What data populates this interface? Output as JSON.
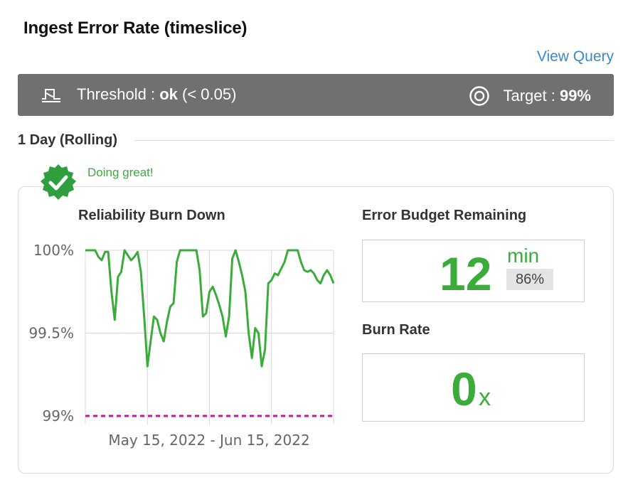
{
  "header": {
    "title": "Ingest Error Rate (timeslice)",
    "view_query": "View Query"
  },
  "status_bar": {
    "threshold_label": "Threshold :",
    "threshold_value": "ok",
    "threshold_detail": "(< 0.05)",
    "target_label": "Target :",
    "target_value": "99%",
    "icons": [
      "threshold-icon",
      "target-icon"
    ],
    "background": "#707070"
  },
  "period": {
    "label": "1 Day (Rolling)"
  },
  "status": {
    "text": "Doing great!",
    "color": "#3aac3a",
    "icon": "check-badge-icon"
  },
  "burn_down": {
    "title": "Reliability Burn Down"
  },
  "error_budget": {
    "title": "Error Budget Remaining",
    "value": "12",
    "unit": "min",
    "percent": "86%"
  },
  "burn_rate": {
    "title": "Burn Rate",
    "value": "0",
    "suffix": "x"
  },
  "chart_data": {
    "type": "line",
    "title": "",
    "xlabel": "May 15, 2022 - Jun 15, 2022",
    "ylabel": "",
    "y_ticks": [
      "100%",
      "99.5%",
      "99%"
    ],
    "ylim": [
      99,
      100
    ],
    "grid": true,
    "line_color": "#3aac3a",
    "threshold": {
      "value": 99.0,
      "style": "dashed",
      "color": "#c01a9a"
    },
    "x": [
      0,
      1,
      2,
      3,
      4,
      5,
      6,
      7,
      8,
      9,
      10,
      11,
      12,
      13,
      14,
      15,
      16,
      17,
      18,
      19,
      20,
      21,
      22,
      23,
      24,
      25,
      26,
      27,
      28,
      29,
      30,
      31,
      32,
      33,
      34,
      35,
      36,
      37,
      38,
      39,
      40,
      41,
      42,
      43,
      44,
      45,
      46,
      47,
      48,
      49,
      50,
      51,
      52,
      53,
      54,
      55,
      56,
      57,
      58,
      59,
      60,
      61,
      62,
      63,
      64,
      65,
      66,
      67,
      68,
      69,
      70,
      71,
      72,
      73,
      74,
      75,
      76
    ],
    "values": [
      100.0,
      100.0,
      100.0,
      100.0,
      99.96,
      99.94,
      99.99,
      99.99,
      99.75,
      99.58,
      99.84,
      99.87,
      100.0,
      99.97,
      99.94,
      99.96,
      99.99,
      99.87,
      99.6,
      99.3,
      99.45,
      99.6,
      99.58,
      99.5,
      99.45,
      99.57,
      99.66,
      99.68,
      99.93,
      100.0,
      100.0,
      100.0,
      100.0,
      100.0,
      100.0,
      99.88,
      99.6,
      99.62,
      99.75,
      99.78,
      99.73,
      99.67,
      99.6,
      99.48,
      99.6,
      99.95,
      100.0,
      99.93,
      99.85,
      99.75,
      99.5,
      99.35,
      99.53,
      99.5,
      99.3,
      99.4,
      99.8,
      99.82,
      99.86,
      99.85,
      99.89,
      99.93,
      100.0,
      100.0,
      100.0,
      100.0,
      99.93,
      99.88,
      99.87,
      99.88,
      99.86,
      99.82,
      99.8,
      99.85,
      99.88,
      99.85,
      99.8
    ]
  }
}
